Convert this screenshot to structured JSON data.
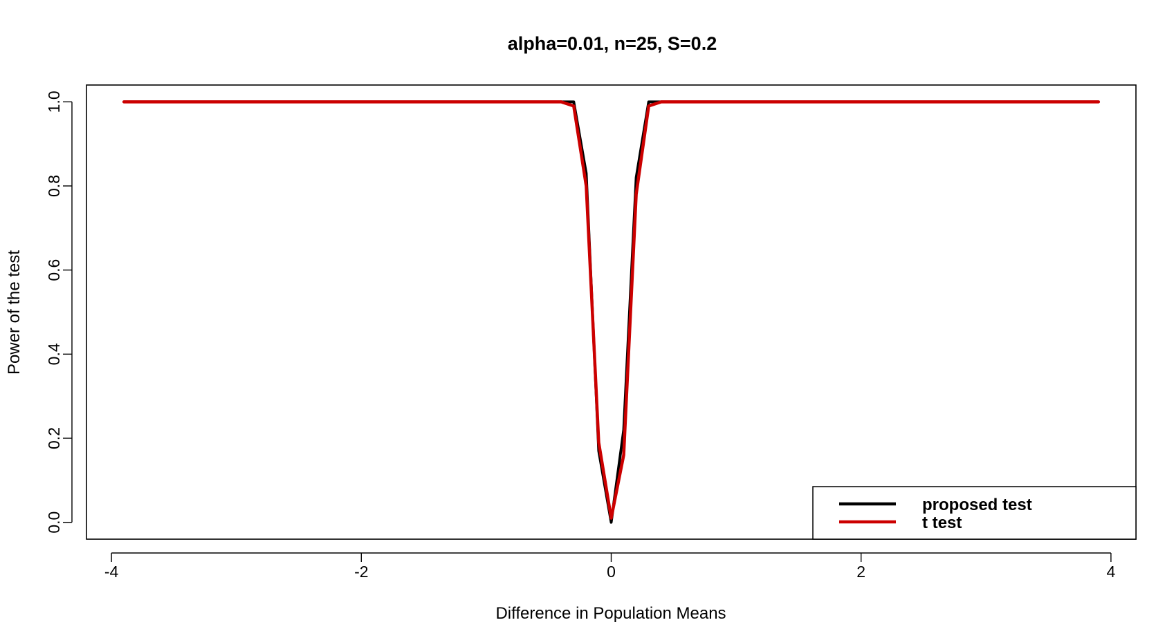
{
  "chart_data": {
    "type": "line",
    "title": "alpha=0.01, n=25, S=0.2",
    "xlabel": "Difference in Population Means",
    "ylabel": "Power of the test",
    "xlim": [
      -4.2,
      4.2
    ],
    "ylim": [
      -0.04,
      1.04
    ],
    "x_ticks": [
      -4,
      -2,
      0,
      2,
      4
    ],
    "x_tick_labels": [
      "-4",
      "-2",
      "0",
      "2",
      "4"
    ],
    "y_ticks": [
      0.0,
      0.2,
      0.4,
      0.6,
      0.8,
      1.0
    ],
    "y_tick_labels": [
      "0.0",
      "0.2",
      "0.4",
      "0.6",
      "0.8",
      "1.0"
    ],
    "grid": false,
    "legend_position": "bottom-right",
    "series": [
      {
        "name": "proposed test",
        "color": "#000000",
        "x": [
          -3.9,
          -0.4,
          -0.3,
          -0.2,
          -0.1,
          0.0,
          0.1,
          0.2,
          0.3,
          0.4,
          3.9
        ],
        "y": [
          1.0,
          1.0,
          1.0,
          0.83,
          0.17,
          0.0,
          0.22,
          0.82,
          1.0,
          1.0,
          1.0
        ]
      },
      {
        "name": "t test",
        "color": "#cc0000",
        "x": [
          -3.9,
          -0.4,
          -0.3,
          -0.2,
          -0.1,
          0.0,
          0.1,
          0.2,
          0.3,
          0.4,
          3.9
        ],
        "y": [
          1.0,
          1.0,
          0.99,
          0.8,
          0.19,
          0.01,
          0.16,
          0.78,
          0.99,
          1.0,
          1.0
        ]
      }
    ]
  }
}
